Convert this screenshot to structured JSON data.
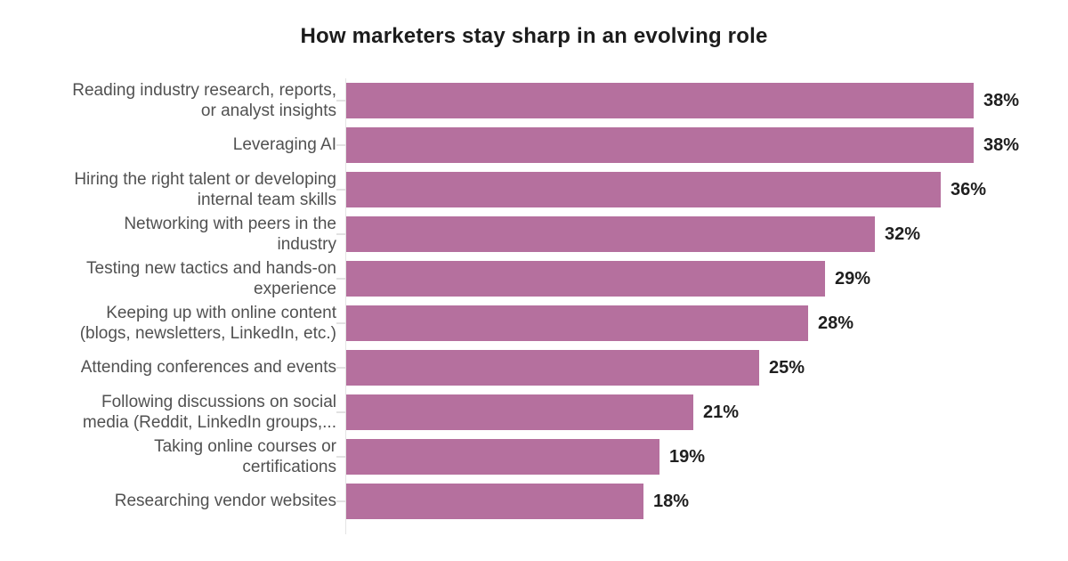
{
  "title": "How marketers stay sharp in an evolving role",
  "chart_data": {
    "type": "bar",
    "orientation": "horizontal",
    "title": "How marketers stay sharp in an evolving role",
    "categories": [
      "Reading industry research, reports,\nor analyst insights",
      "Leveraging AI",
      "Hiring the right talent or developing\ninternal team skills",
      "Networking with peers in the\nindustry",
      "Testing new tactics and hands-on\nexperience",
      "Keeping up with online content\n(blogs, newsletters, LinkedIn, etc.)",
      "Attending conferences and events",
      "Following discussions on social\nmedia (Reddit, LinkedIn groups,...",
      "Taking online courses or\ncertifications",
      "Researching vendor websites"
    ],
    "values": [
      38,
      38,
      36,
      32,
      29,
      28,
      25,
      21,
      19,
      18
    ],
    "value_labels": [
      "38%",
      "38%",
      "36%",
      "32%",
      "29%",
      "28%",
      "25%",
      "21%",
      "19%",
      "18%"
    ],
    "xlabel": "",
    "ylabel": "",
    "xlim": [
      0,
      41.6
    ],
    "grid": false,
    "legend": false,
    "bar_color": "#b5709e",
    "axis_color": "#e4e4e4",
    "category_label_color": "#515151",
    "value_label_color": "#1f1f1f",
    "title_color": "#1c1c1c"
  }
}
